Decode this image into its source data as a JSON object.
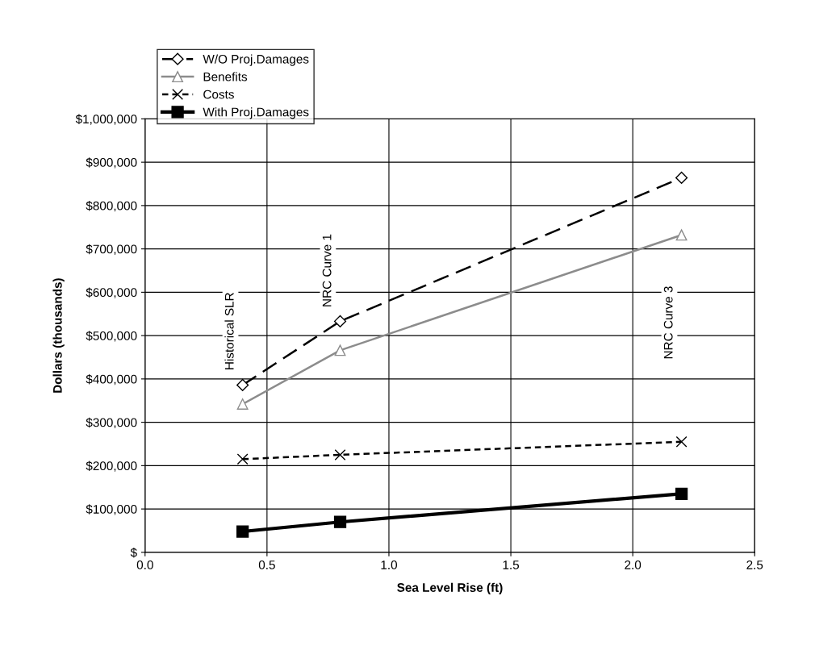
{
  "chart_data": {
    "type": "line",
    "xlabel": "Sea Level Rise (ft)",
    "ylabel": "Dollars (thousands)",
    "x": [
      0.4,
      0.8,
      2.2
    ],
    "series": [
      {
        "name": "W/O Proj.Damages",
        "color": "#000000",
        "values": [
          386000,
          533000,
          864000
        ],
        "marker": "diamond",
        "line_style": "dashed"
      },
      {
        "name": "Benefits",
        "color": "#8c8c8c",
        "values": [
          342000,
          466000,
          732000
        ],
        "marker": "triangle",
        "line_style": "solid"
      },
      {
        "name": "Costs",
        "color": "#000000",
        "values": [
          215000,
          225000,
          255000
        ],
        "marker": "cross",
        "line_style": "dotted"
      },
      {
        "name": "With Proj.Damages",
        "color": "#000000",
        "values": [
          48000,
          70000,
          135000
        ],
        "marker": "square",
        "line_style": "solid"
      }
    ],
    "xlim": [
      0,
      2.5
    ],
    "xticks": [
      {
        "value": 0,
        "label": "0.0"
      },
      {
        "value": 0.5,
        "label": "0.5"
      },
      {
        "value": 1,
        "label": "1.0"
      },
      {
        "value": 1.5,
        "label": "1.5"
      },
      {
        "value": 2,
        "label": "2.0"
      },
      {
        "value": 2.5,
        "label": "2.5"
      }
    ],
    "ylim": [
      0,
      1000000
    ],
    "yticks": [
      {
        "value": 0,
        "label": "$"
      },
      {
        "value": 100000,
        "label": "$100,000"
      },
      {
        "value": 200000,
        "label": "$200,000"
      },
      {
        "value": 300000,
        "label": "$300,000"
      },
      {
        "value": 400000,
        "label": "$400,000"
      },
      {
        "value": 500000,
        "label": "$500,000"
      },
      {
        "value": 600000,
        "label": "$600,000"
      },
      {
        "value": 700000,
        "label": "$700,000"
      },
      {
        "value": 800000,
        "label": "$800,000"
      },
      {
        "value": 900000,
        "label": "$900,000"
      },
      {
        "value": 1000000,
        "label": "$1,000,000"
      }
    ],
    "annotations": [
      "Historical SLR",
      "NRC Curve 1",
      "NRC Curve 3"
    ],
    "grid": true,
    "legend": "top left"
  }
}
